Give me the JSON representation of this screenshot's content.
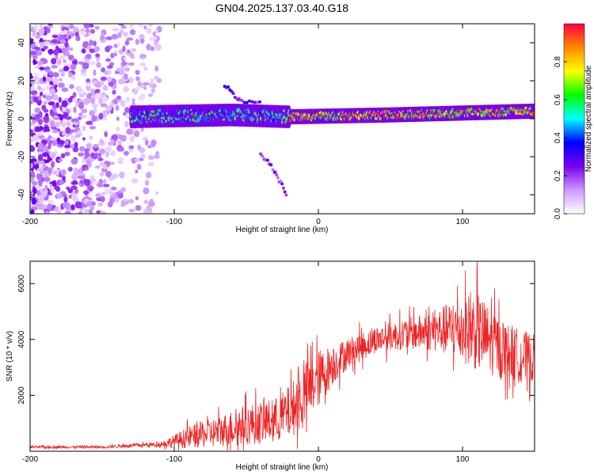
{
  "chart_data": [
    {
      "type": "heatmap",
      "title": "GN04.2025.137.03.40.G18",
      "xlabel": "Height of straight line (km)",
      "ylabel": "Frequency (Hz)",
      "xlim": [
        -200,
        150
      ],
      "ylim": [
        -50,
        50
      ],
      "xticks": [
        -200,
        -100,
        0,
        100
      ],
      "yticks": [
        -40,
        -20,
        0,
        20,
        40
      ],
      "grid": false,
      "colorbar": {
        "label": "Normalized spectral amplitude",
        "range": [
          0,
          1
        ],
        "ticks": [
          "0.0",
          "0.2",
          "0.4",
          "0.6",
          "0.8"
        ],
        "colors": [
          "#ffffff",
          "#cc99ff",
          "#7700ee",
          "#0000ff",
          "#00ffff",
          "#00ff00",
          "#ffff00",
          "#ff8800",
          "#ff0044"
        ]
      },
      "regions": [
        {
          "name": "noise",
          "x_range": [
            -200,
            -110
          ],
          "y_range": [
            -50,
            50
          ],
          "amplitude": 0.15
        },
        {
          "name": "main-band",
          "x_range": [
            -130,
            150
          ],
          "center_y": [
            [
              -130,
              1
            ],
            [
              -60,
              2
            ],
            [
              -20,
              1
            ],
            [
              50,
              2
            ],
            [
              150,
              4
            ]
          ],
          "halfwidth_hz": 4,
          "amplitude": 0.75
        },
        {
          "name": "branch-upper",
          "points": [
            [
              -65,
              18
            ],
            [
              -55,
              10
            ],
            [
              -40,
              8
            ]
          ],
          "amplitude": 0.3
        },
        {
          "name": "branch-lower",
          "points": [
            [
              -40,
              -18
            ],
            [
              -30,
              -28
            ],
            [
              -22,
              -40
            ]
          ],
          "amplitude": 0.25
        }
      ]
    },
    {
      "type": "line",
      "xlabel": "Height of straight line (km)",
      "ylabel": "SNR (10 * v/v)",
      "xlim": [
        -200,
        150
      ],
      "ylim": [
        0,
        6800
      ],
      "xticks": [
        -200,
        -100,
        0,
        100
      ],
      "yticks": [
        2000,
        4000,
        6000
      ],
      "grid": false,
      "series_color": "#ee2222",
      "envelope": {
        "x": [
          -200,
          -150,
          -110,
          -100,
          -90,
          -70,
          -50,
          -30,
          -20,
          -10,
          0,
          10,
          20,
          40,
          60,
          80,
          100,
          110,
          120,
          130,
          140,
          150
        ],
        "mean": [
          150,
          150,
          250,
          350,
          500,
          700,
          950,
          1100,
          1400,
          2000,
          2600,
          3100,
          3500,
          4000,
          4200,
          4300,
          4400,
          4300,
          3900,
          3600,
          3400,
          3300
        ],
        "spread": [
          60,
          60,
          100,
          300,
          500,
          700,
          900,
          1000,
          1200,
          1400,
          1300,
          900,
          700,
          600,
          700,
          900,
          1500,
          1800,
          1500,
          1300,
          1200,
          1100
        ]
      }
    }
  ]
}
